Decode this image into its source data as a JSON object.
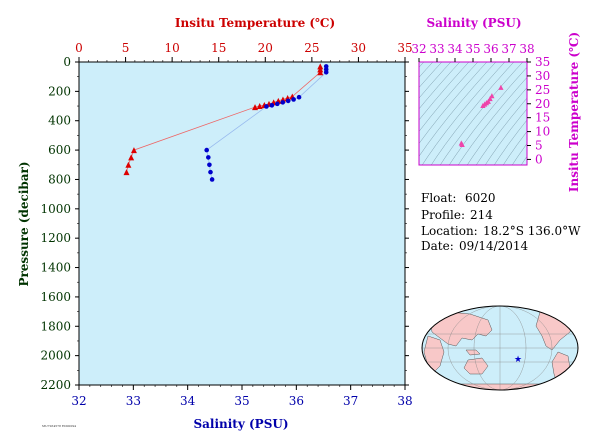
{
  "chart_data": [
    {
      "type": "scatter",
      "subtype": "vertical-profile",
      "title": "",
      "top_axis": {
        "label": "Insitu Temperature (℃)",
        "range": [
          0,
          35
        ],
        "ticks": [
          "0",
          "5",
          "10",
          "15",
          "20",
          "25",
          "30",
          "35"
        ],
        "color": "#cc0000"
      },
      "bottom_axis": {
        "label": "Salinity (PSU)",
        "range": [
          32,
          38
        ],
        "ticks": [
          "32",
          "33",
          "34",
          "35",
          "36",
          "37",
          "38"
        ],
        "color": "#0000aa"
      },
      "y_axis": {
        "label": "Pressure (decibar)",
        "range": [
          0,
          2200
        ],
        "reversed": true,
        "ticks": [
          "0",
          "200",
          "400",
          "600",
          "800",
          "1000",
          "1200",
          "1400",
          "1600",
          "1800",
          "2000",
          "2200"
        ],
        "color": "#003300"
      },
      "background": "#cdeefa",
      "series": [
        {
          "marker": "triangle",
          "color": "#dd0000",
          "axis": "top",
          "points": [
            {
              "x": 25.9,
              "y": 30
            },
            {
              "x": 25.9,
              "y": 50
            },
            {
              "x": 25.9,
              "y": 70
            },
            {
              "x": 22.9,
              "y": 235
            },
            {
              "x": 22.4,
              "y": 245
            },
            {
              "x": 21.9,
              "y": 255
            },
            {
              "x": 21.4,
              "y": 265
            },
            {
              "x": 20.9,
              "y": 275
            },
            {
              "x": 20.4,
              "y": 285
            },
            {
              "x": 19.9,
              "y": 293
            },
            {
              "x": 19.4,
              "y": 300
            },
            {
              "x": 18.9,
              "y": 307
            },
            {
              "x": 5.9,
              "y": 600
            },
            {
              "x": 5.6,
              "y": 650
            },
            {
              "x": 5.3,
              "y": 700
            },
            {
              "x": 5.1,
              "y": 750
            }
          ]
        },
        {
          "marker": "circle",
          "color": "#0000cc",
          "axis": "bottom",
          "points": [
            {
              "x": 36.55,
              "y": 30
            },
            {
              "x": 36.55,
              "y": 50
            },
            {
              "x": 36.55,
              "y": 70
            },
            {
              "x": 36.05,
              "y": 240
            },
            {
              "x": 35.95,
              "y": 255
            },
            {
              "x": 35.85,
              "y": 265
            },
            {
              "x": 35.75,
              "y": 275
            },
            {
              "x": 35.65,
              "y": 285
            },
            {
              "x": 35.55,
              "y": 295
            },
            {
              "x": 35.45,
              "y": 303
            },
            {
              "x": 34.35,
              "y": 600
            },
            {
              "x": 34.38,
              "y": 650
            },
            {
              "x": 34.4,
              "y": 700
            },
            {
              "x": 34.42,
              "y": 750
            },
            {
              "x": 34.45,
              "y": 800
            }
          ]
        }
      ]
    },
    {
      "type": "scatter",
      "subtype": "T-S diagram",
      "title": "",
      "x_axis": {
        "label": "Salinity (PSU)",
        "range": [
          32,
          38
        ],
        "ticks": [
          "32",
          "33",
          "34",
          "35",
          "36",
          "37",
          "38"
        ],
        "color": "#cc00cc"
      },
      "y_axis": {
        "label": "Insitu Temperature (℃)",
        "range": [
          -2,
          35
        ],
        "ticks": [
          "0",
          "5",
          "10",
          "15",
          "20",
          "25",
          "30",
          "35"
        ],
        "color": "#cc00cc"
      },
      "background": "#cdeefa",
      "points": [
        {
          "x": 36.55,
          "y": 25.9
        },
        {
          "x": 36.05,
          "y": 22.9
        },
        {
          "x": 35.95,
          "y": 21.9
        },
        {
          "x": 35.85,
          "y": 20.9
        },
        {
          "x": 35.75,
          "y": 20.4
        },
        {
          "x": 35.65,
          "y": 19.9
        },
        {
          "x": 35.55,
          "y": 19.4
        },
        {
          "x": 34.35,
          "y": 5.9
        },
        {
          "x": 34.4,
          "y": 5.4
        }
      ]
    }
  ],
  "info": {
    "float_label": "Float:",
    "float_value": "6020",
    "profile_label": "Profile:",
    "profile_value": "214",
    "location_label": "Location:",
    "location_value": "18.2°S  136.0°W",
    "date_label": "Date:",
    "date_value": "09/14/2014"
  },
  "map": {
    "marker_lat": -18.2,
    "marker_lon": -136.0,
    "marker_symbol": "★",
    "marker_color": "#0000cc",
    "land_color": "#f8c8c8",
    "ocean_color": "#cdeefa"
  },
  "footer_text": "MU7264578 ED00094"
}
